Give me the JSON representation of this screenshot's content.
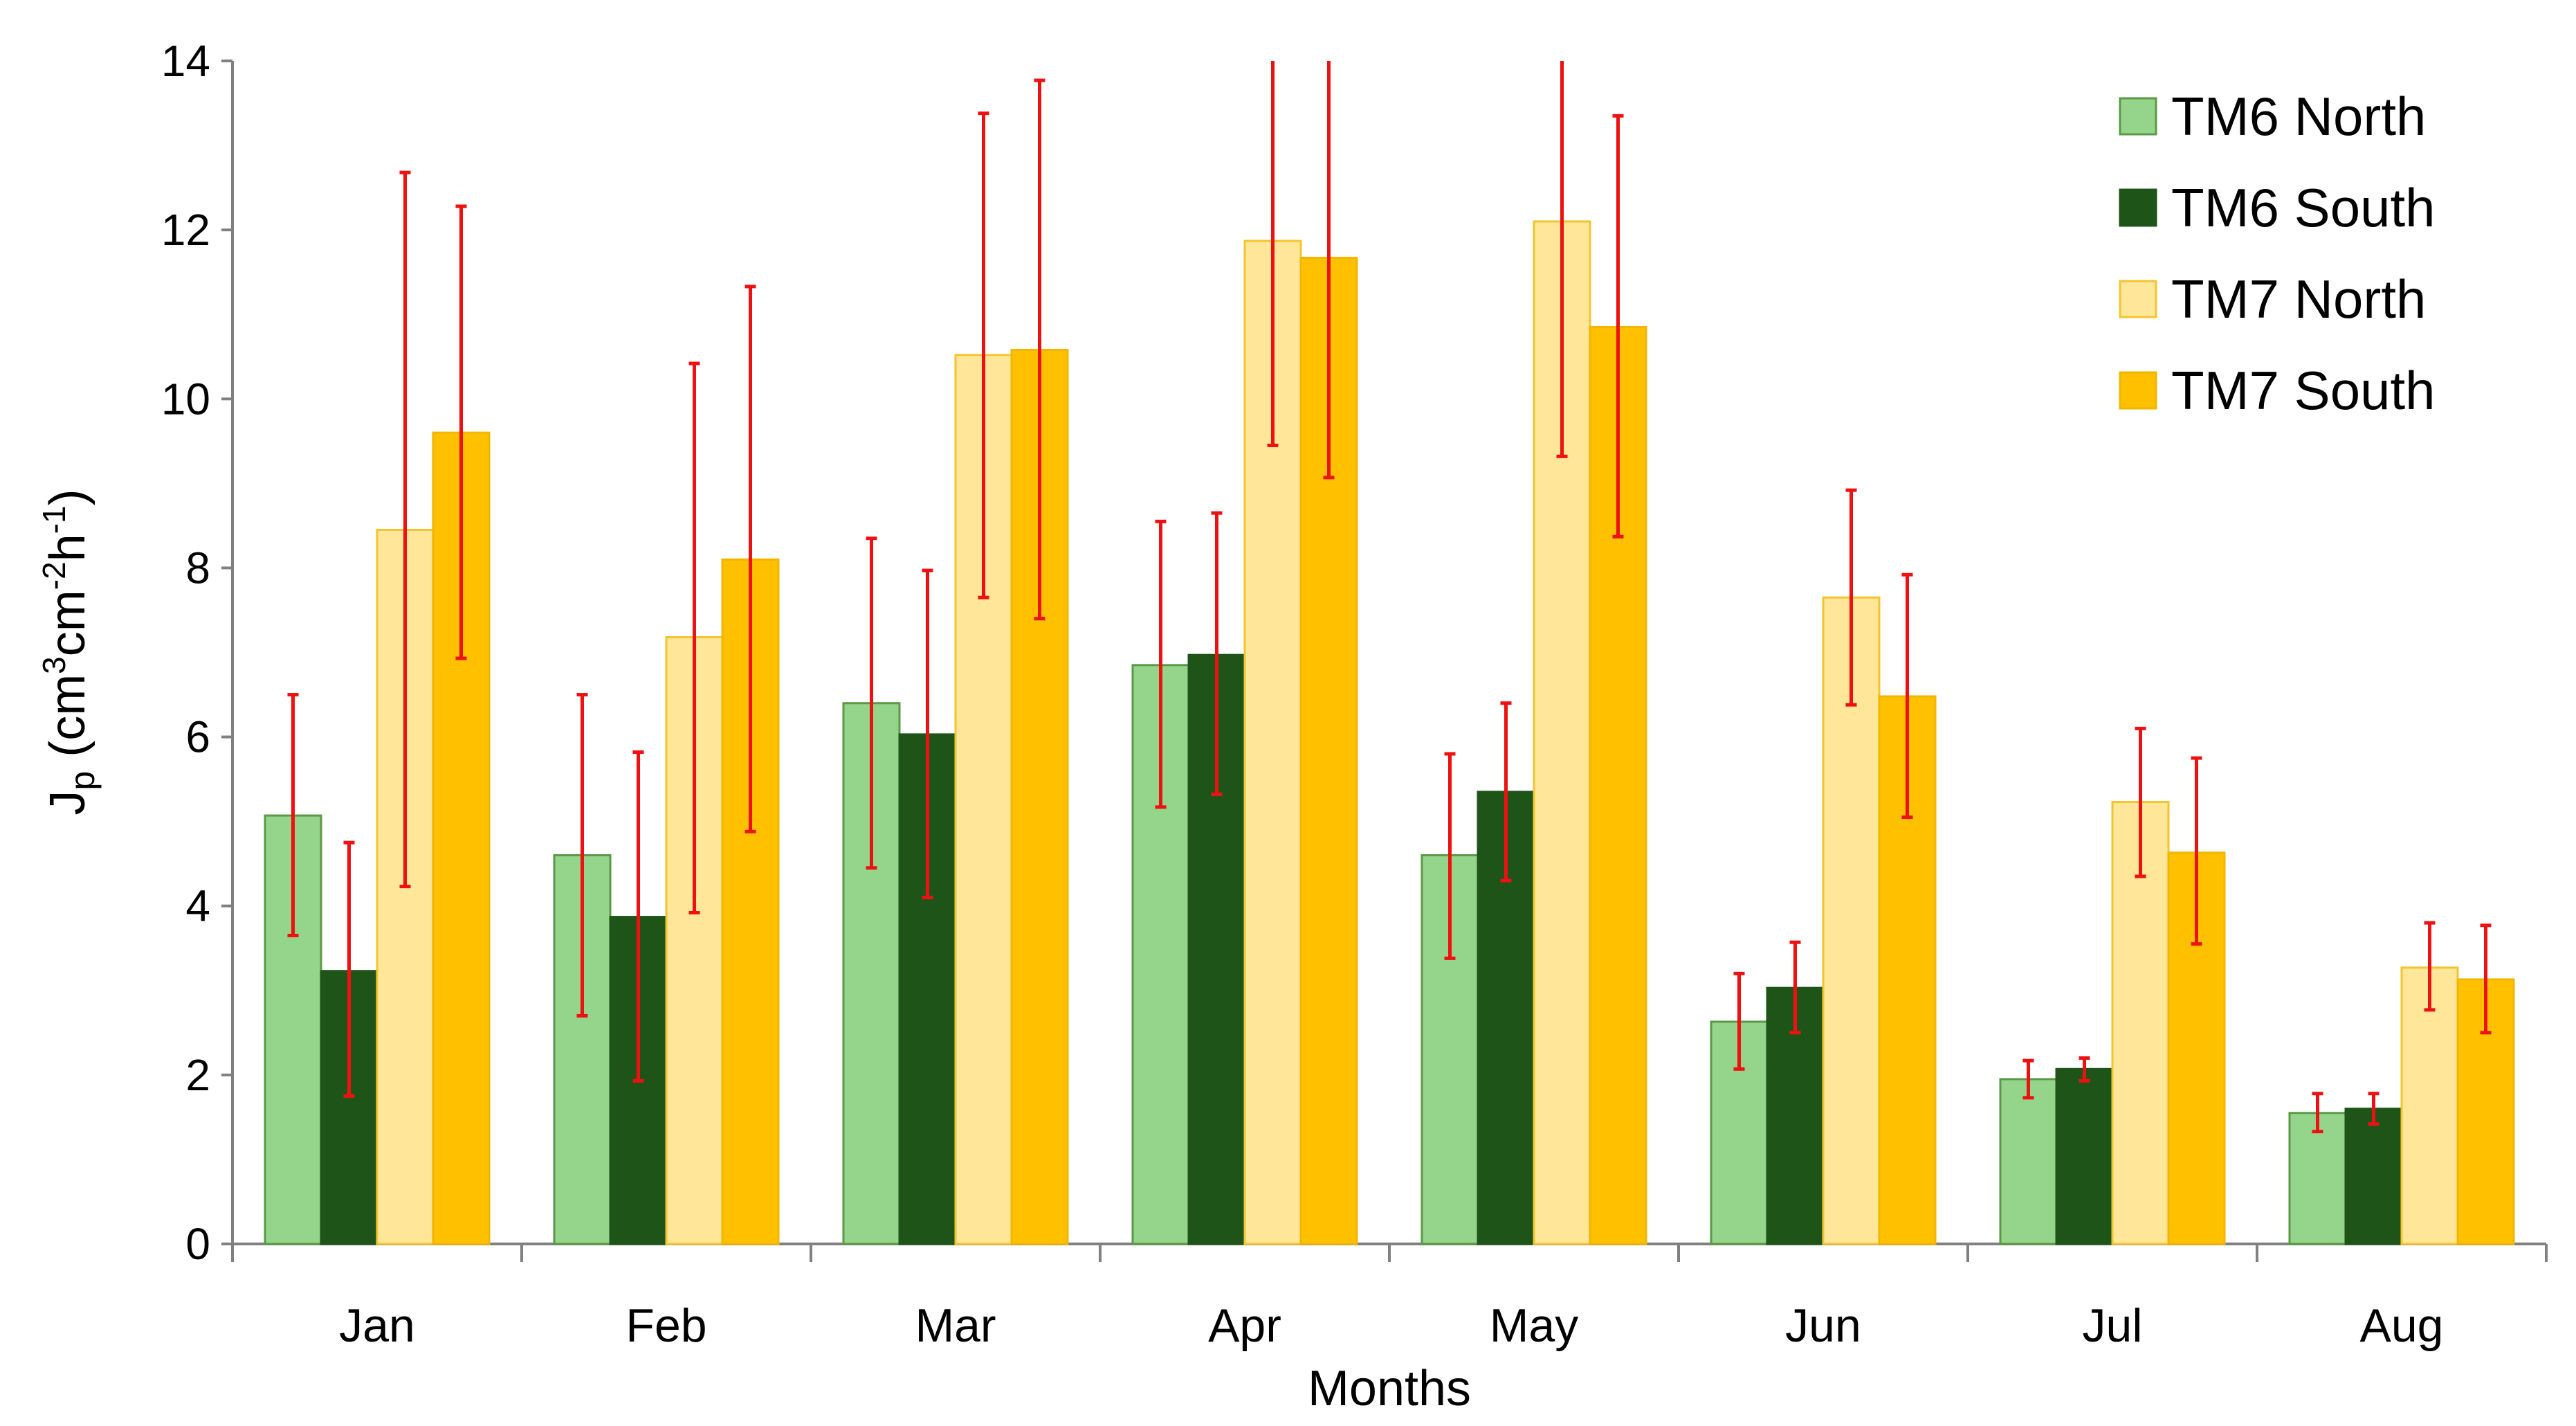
{
  "chart_data": {
    "type": "bar",
    "title": "",
    "xlabel": "Months",
    "ylabel": {
      "main": "J",
      "sub": "p",
      "unit_open": " (cm",
      "unit_exp1": "3",
      "unit_mid": "cm",
      "unit_exp2": "-2",
      "unit_h": "h",
      "unit_exp3": "-1",
      "unit_close": ")"
    },
    "ylim": [
      0,
      14
    ],
    "yticks": [
      0,
      2,
      4,
      6,
      8,
      10,
      12,
      14
    ],
    "grid": false,
    "legend_position": "top-right",
    "categories": [
      "Jan",
      "Feb",
      "Mar",
      "Apr",
      "May",
      "Jun",
      "Jul",
      "Aug"
    ],
    "series": [
      {
        "name": "TM6 North",
        "color": "#95d48b",
        "stroke": "#5a9a46",
        "values": [
          5.07,
          4.6,
          6.4,
          6.85,
          4.6,
          2.63,
          1.95,
          1.55
        ],
        "error_low": [
          3.65,
          2.7,
          4.45,
          5.17,
          3.38,
          2.07,
          1.73,
          1.33
        ],
        "error_high": [
          6.5,
          6.5,
          8.35,
          8.55,
          5.8,
          3.2,
          2.17,
          1.78
        ]
      },
      {
        "name": "TM6 South",
        "color": "#1f5419",
        "stroke": "#1f5419",
        "values": [
          3.23,
          3.87,
          6.03,
          6.97,
          5.35,
          3.03,
          2.07,
          1.6
        ],
        "error_low": [
          1.75,
          1.93,
          4.1,
          5.32,
          4.3,
          2.5,
          1.93,
          1.42
        ],
        "error_high": [
          4.75,
          5.82,
          7.97,
          8.65,
          6.4,
          3.57,
          2.2,
          1.78
        ]
      },
      {
        "name": "TM7 North",
        "color": "#ffe699",
        "stroke": "#f2c530",
        "values": [
          8.45,
          7.18,
          10.52,
          11.87,
          12.1,
          7.65,
          5.23,
          3.27
        ],
        "error_low": [
          4.23,
          3.92,
          7.65,
          9.45,
          9.32,
          6.38,
          4.35,
          2.77
        ],
        "error_high": [
          12.68,
          10.42,
          13.38,
          14.0,
          14.0,
          8.92,
          6.1,
          3.8
        ]
      },
      {
        "name": "TM7 South",
        "color": "#ffc000",
        "stroke": "#f2b600",
        "values": [
          9.6,
          8.1,
          10.58,
          11.67,
          10.85,
          6.48,
          4.63,
          3.13
        ],
        "error_low": [
          6.93,
          4.88,
          7.4,
          9.07,
          8.37,
          5.05,
          3.55,
          2.5
        ],
        "error_high": [
          12.28,
          11.33,
          13.77,
          14.0,
          13.35,
          7.92,
          5.75,
          3.77
        ]
      }
    ],
    "error_bar_color": "#ee1111"
  }
}
